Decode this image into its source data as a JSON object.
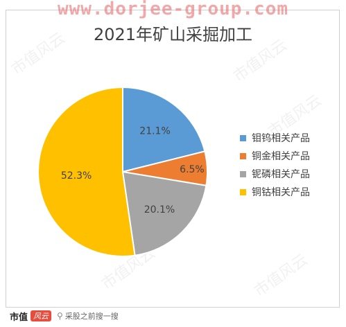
{
  "watermark": {
    "url": "www.dorjee-group.com",
    "bg_text": "市值风云"
  },
  "footer": {
    "brand": "市值",
    "badge": "风云",
    "search_text": "采股之前搜一搜"
  },
  "chart_data": {
    "type": "pie",
    "title": "2021年矿山采掘加工",
    "categories": [
      "钼钨相关产品",
      "铜金相关产品",
      "铌磷相关产品",
      "铜钴相关产品"
    ],
    "values": [
      21.1,
      6.5,
      20.1,
      52.3
    ],
    "labels": [
      "21.1%",
      "6.5%",
      "20.1%",
      "52.3%"
    ],
    "colors": [
      "#5B9BD5",
      "#ED7D31",
      "#A5A5A5",
      "#FFC000"
    ],
    "legend_position": "right"
  }
}
